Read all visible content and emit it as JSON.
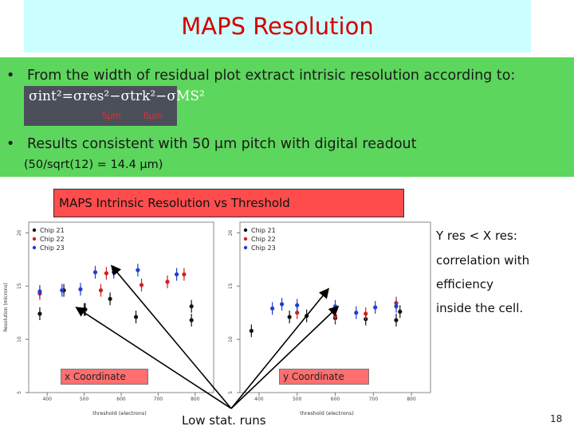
{
  "slide": {
    "title": "MAPS Resolution",
    "bullet1": "From the width of residual plot extract intrisic resolution according to:",
    "formula_main": "σint²=σres²−σtrk²−σMS²",
    "formula_trk_value": "5μm",
    "formula_ms_value": "6μm",
    "bullet2": "Results consistent with 50 μm pitch with digital readout",
    "bullet2_sub": "(50/sqrt(12) = 14.4 μm)",
    "plot_title": "MAPS Intrinsic Resolution vs Threshold",
    "note_lines": [
      "Y res < X res:",
      "correlation with",
      "efficiency",
      "inside the cell."
    ],
    "x_coord_label": "x Coordinate",
    "y_coord_label": "y Coordinate",
    "low_stat_label": "Low stat. runs",
    "page_number": "18",
    "bullet_char": "•"
  },
  "colors": {
    "title_bg": "#ccffff",
    "title_text": "#d40000",
    "panel_green": "#5dd65d",
    "label_red": "#ff4d4d",
    "chip21": "#111111",
    "chip22": "#d02020",
    "chip23": "#1f3fcf"
  },
  "chart_data": [
    {
      "type": "scatter",
      "title": "",
      "xlabel": "threshold (electrons)",
      "ylabel": "Resolution (microns)",
      "xlim": [
        350,
        850
      ],
      "ylim": [
        5,
        21
      ],
      "xticks": [
        400,
        500,
        600,
        700,
        800
      ],
      "yticks": [
        5,
        10,
        15,
        20
      ],
      "legend_position": "top-left",
      "series": [
        {
          "name": "Chip 21",
          "points": [
            [
              380,
              12.4
            ],
            [
              445,
              14.6
            ],
            [
              500,
              12.8
            ],
            [
              503,
              12.8
            ],
            [
              570,
              13.8
            ],
            [
              640,
              12.1
            ],
            [
              790,
              13.1
            ],
            [
              790,
              11.8
            ]
          ]
        },
        {
          "name": "Chip 22",
          "points": [
            [
              380,
              14.3
            ],
            [
              545,
              14.6
            ],
            [
              560,
              16.2
            ],
            [
              655,
              15.1
            ],
            [
              725,
              15.4
            ],
            [
              770,
              16.1
            ]
          ]
        },
        {
          "name": "Chip 23",
          "points": [
            [
              380,
              14.5
            ],
            [
              440,
              14.6
            ],
            [
              490,
              14.7
            ],
            [
              530,
              16.3
            ],
            [
              580,
              16.3
            ],
            [
              645,
              16.5
            ],
            [
              750,
              16.1
            ]
          ]
        }
      ]
    },
    {
      "type": "scatter",
      "title": "",
      "xlabel": "threshold (electrons)",
      "ylabel": "",
      "xlim": [
        350,
        850
      ],
      "ylim": [
        5,
        21
      ],
      "xticks": [
        400,
        500,
        600,
        700,
        800
      ],
      "yticks": [
        5,
        10,
        15,
        20
      ],
      "legend_position": "top-left",
      "series": [
        {
          "name": "Chip 21",
          "points": [
            [
              380,
              10.8
            ],
            [
              480,
              12.1
            ],
            [
              525,
              12.2
            ],
            [
              600,
              12.0
            ],
            [
              680,
              11.9
            ],
            [
              760,
              11.8
            ],
            [
              770,
              12.6
            ]
          ]
        },
        {
          "name": "Chip 22",
          "points": [
            [
              500,
              12.5
            ],
            [
              600,
              12.2
            ],
            [
              680,
              12.4
            ],
            [
              760,
              13.4
            ]
          ]
        },
        {
          "name": "Chip 23",
          "points": [
            [
              435,
              12.9
            ],
            [
              460,
              13.3
            ],
            [
              500,
              13.2
            ],
            [
              600,
              13.1
            ],
            [
              655,
              12.5
            ],
            [
              705,
              13.0
            ],
            [
              760,
              13.1
            ]
          ]
        }
      ]
    }
  ]
}
